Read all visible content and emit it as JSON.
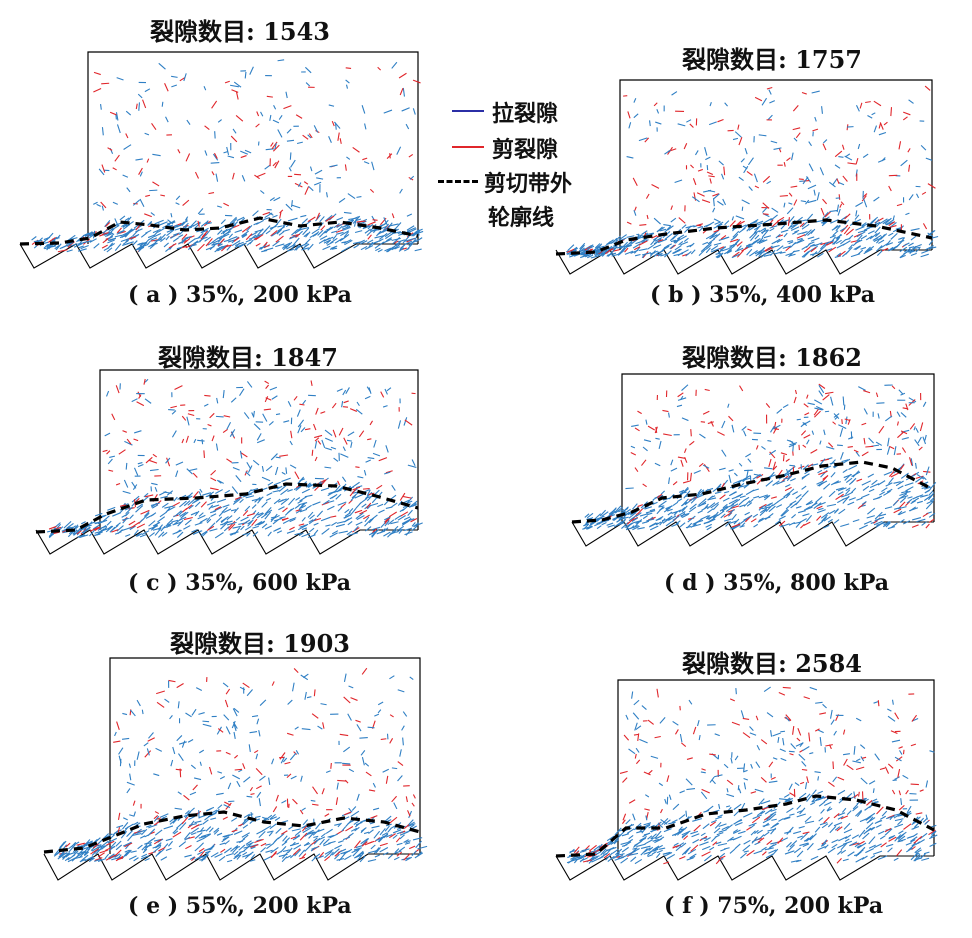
{
  "legend": {
    "tension": {
      "label": "拉裂隙",
      "color": "#2b2fa6"
    },
    "shear": {
      "label": "剪裂隙",
      "color": "#e0262b"
    },
    "boundary": {
      "label_line1": "剪切带外",
      "label_line2": "轮廓线",
      "color": "#000000"
    }
  },
  "colors": {
    "tension_marks": "#2f7fc4",
    "shear_marks": "#e0262b",
    "frame": "#000000"
  },
  "panels": [
    {
      "id": "a",
      "title": "裂隙数目: 1543",
      "caption": "( a ) 35%, 200 kPa",
      "crack_count": 1543
    },
    {
      "id": "b",
      "title": "裂隙数目: 1757",
      "caption": "( b ) 35%, 400 kPa",
      "crack_count": 1757
    },
    {
      "id": "c",
      "title": "裂隙数目: 1847",
      "caption": "( c ) 35%, 600 kPa",
      "crack_count": 1847
    },
    {
      "id": "d",
      "title": "裂隙数目: 1862",
      "caption": "( d ) 35%, 800 kPa",
      "crack_count": 1862
    },
    {
      "id": "e",
      "title": "裂隙数目: 1903",
      "caption": "( e ) 55%, 200 kPa",
      "crack_count": 1903
    },
    {
      "id": "f",
      "title": "裂隙数目: 2584",
      "caption": "( f ) 75%, 200 kPa",
      "crack_count": 2584
    }
  ]
}
